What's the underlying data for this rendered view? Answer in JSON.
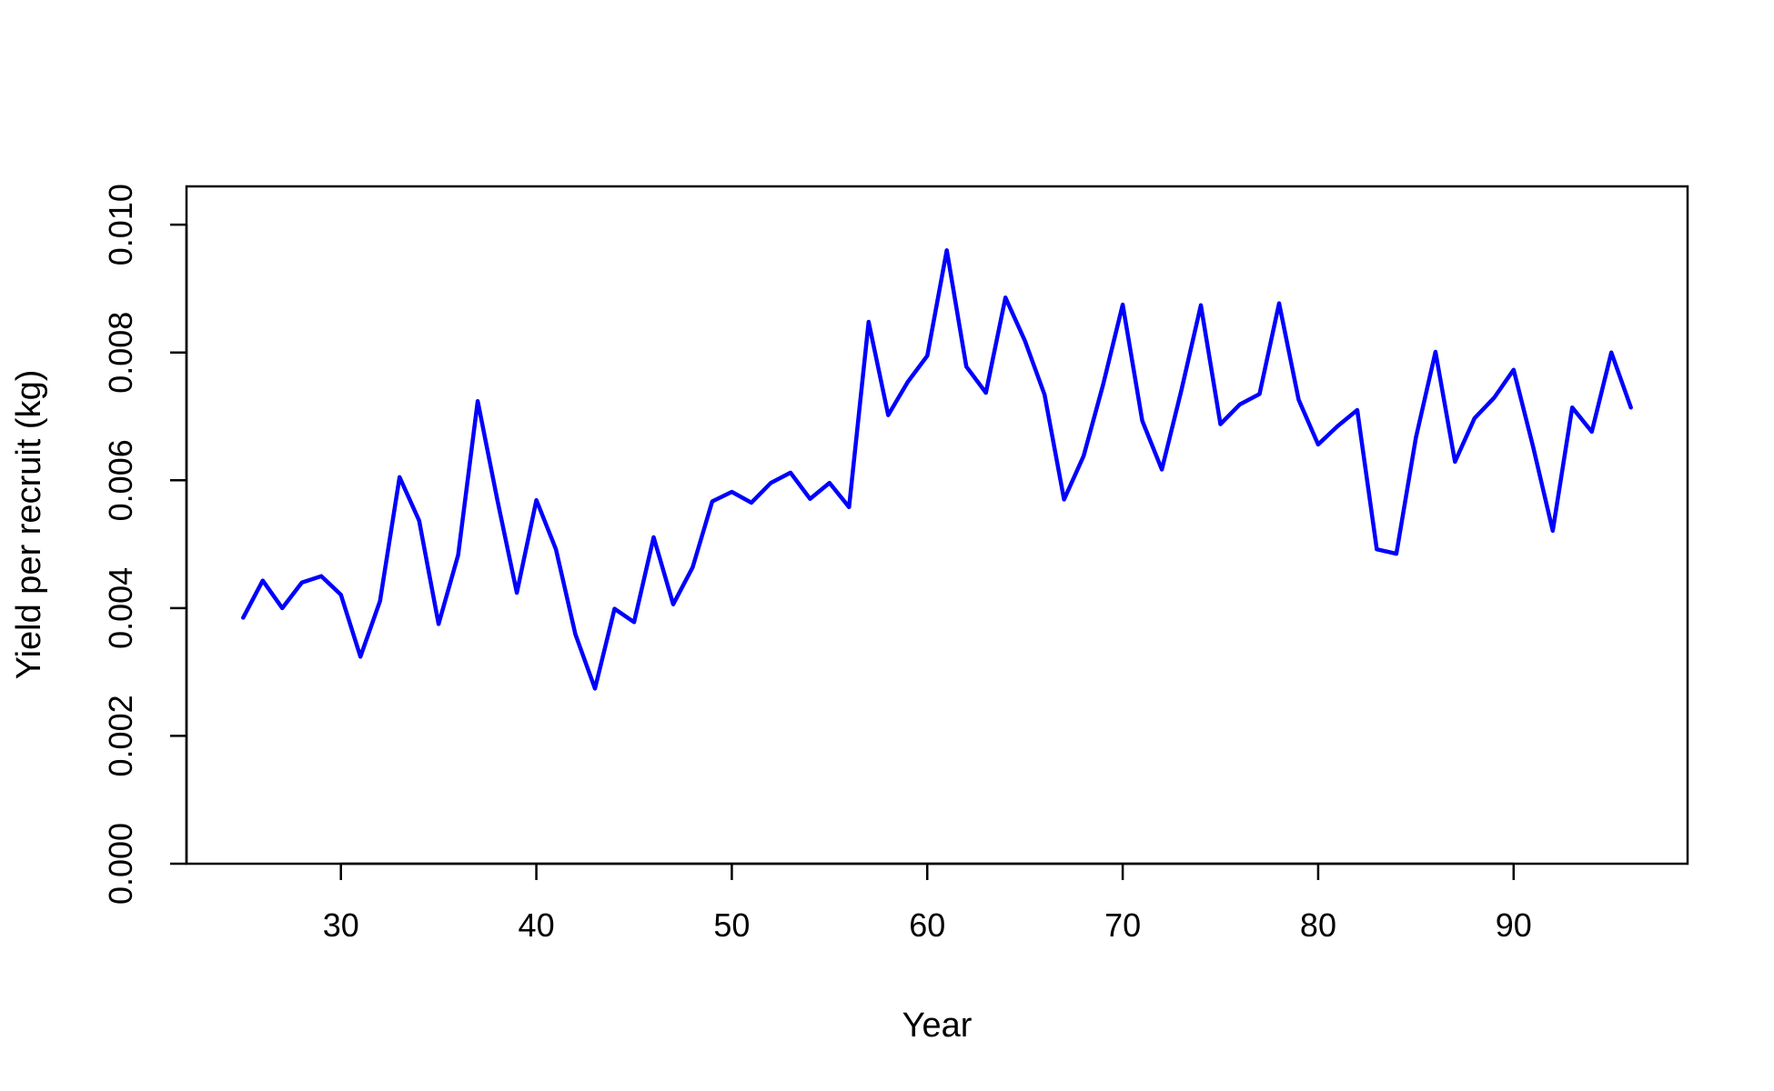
{
  "chart_data": {
    "type": "line",
    "title": "",
    "xlabel": "Year",
    "ylabel": "Yield per recruit (kg)",
    "xlim": [
      22.1,
      98.9
    ],
    "ylim": [
      0,
      0.0106
    ],
    "x_ticks": [
      30,
      40,
      50,
      60,
      70,
      80,
      90
    ],
    "x_tick_labels": [
      "30",
      "40",
      "50",
      "60",
      "70",
      "80",
      "90"
    ],
    "y_ticks": [
      0,
      0.002,
      0.004,
      0.006,
      0.008,
      0.01
    ],
    "y_tick_labels": [
      "0.000",
      "0.002",
      "0.004",
      "0.006",
      "0.008",
      "0.010"
    ],
    "grid": false,
    "legend": "none",
    "line_color": "#0000FF",
    "x": [
      25,
      26,
      27,
      28,
      29,
      30,
      31,
      32,
      33,
      34,
      35,
      36,
      37,
      38,
      39,
      40,
      41,
      42,
      43,
      44,
      45,
      46,
      47,
      48,
      49,
      50,
      51,
      52,
      53,
      54,
      55,
      56,
      57,
      58,
      59,
      60,
      61,
      62,
      63,
      64,
      65,
      66,
      67,
      68,
      69,
      70,
      71,
      72,
      73,
      74,
      75,
      76,
      77,
      78,
      79,
      80,
      81,
      82,
      83,
      84,
      85,
      86,
      87,
      88,
      89,
      90,
      91,
      92,
      93,
      94,
      95,
      96
    ],
    "y": [
      0.00385,
      0.00443,
      0.004,
      0.0044,
      0.0045,
      0.00421,
      0.00324,
      0.00411,
      0.00605,
      0.00537,
      0.00375,
      0.00483,
      0.00724,
      0.0057,
      0.00424,
      0.00569,
      0.00492,
      0.00359,
      0.00274,
      0.00399,
      0.00378,
      0.00511,
      0.00406,
      0.00464,
      0.00567,
      0.00582,
      0.00565,
      0.00596,
      0.00612,
      0.00571,
      0.00596,
      0.00558,
      0.00848,
      0.00702,
      0.00754,
      0.00795,
      0.0096,
      0.00778,
      0.00737,
      0.00886,
      0.00818,
      0.00734,
      0.0057,
      0.00638,
      0.0075,
      0.00875,
      0.00693,
      0.00617,
      0.00741,
      0.00874,
      0.00688,
      0.00719,
      0.00735,
      0.00877,
      0.00726,
      0.00656,
      0.00685,
      0.0071,
      0.00492,
      0.00485,
      0.00667,
      0.00801,
      0.00629,
      0.00697,
      0.00729,
      0.00773,
      0.00652,
      0.00521,
      0.00714,
      0.00676,
      0.008,
      0.00714
    ]
  }
}
